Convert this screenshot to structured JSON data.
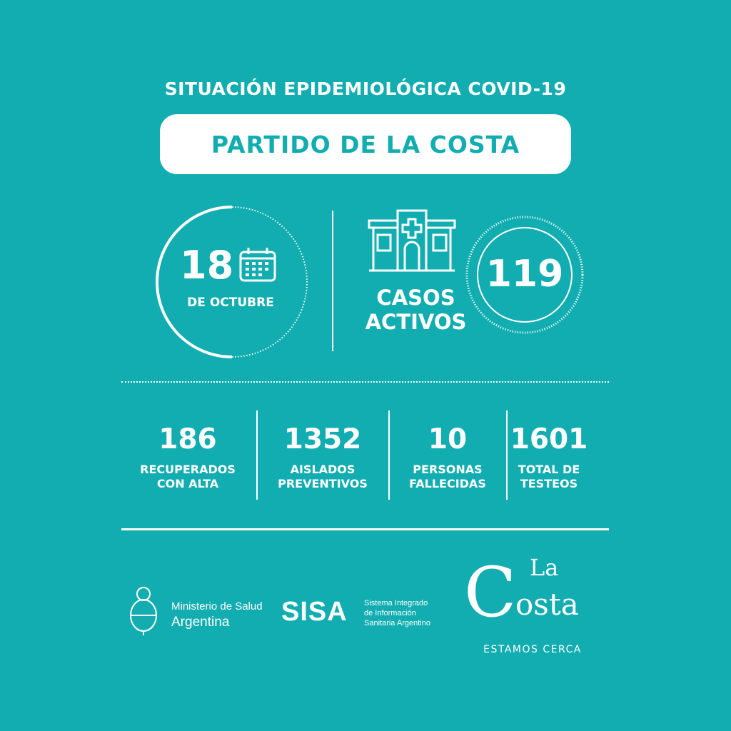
{
  "header": {
    "title": "SITUACIÓN EPIDEMIOLÓGICA COVID-19",
    "location": "PARTIDO DE LA COSTA"
  },
  "date": {
    "day": "18",
    "month": "DE OCTUBRE",
    "icon": "calendar-icon"
  },
  "active": {
    "icon": "hospital-icon",
    "label_line1": "CASOS",
    "label_line2": "ACTIVOS",
    "value": "119"
  },
  "stats": [
    {
      "value": "186",
      "line1": "RECUPERADOS",
      "line2": "CON ALTA"
    },
    {
      "value": "1352",
      "line1": "AISLADOS",
      "line2": "PREVENTIVOS"
    },
    {
      "value": "10",
      "line1": "PERSONAS",
      "line2": "FALLECIDAS"
    },
    {
      "value": "1601",
      "line1": "TOTAL DE",
      "line2": "TESTEOS"
    }
  ],
  "footer": {
    "ministerio_line1": "Ministerio de Salud",
    "ministerio_line2": "Argentina",
    "sisa_logo": "SISA",
    "sisa_line1": "Sistema Integrado",
    "sisa_line2": "de Información",
    "sisa_line3": "Sanitaria Argentino",
    "lacosta_logo": "La Costa",
    "lacosta_tagline": "ESTAMOS CERCA"
  },
  "colors": {
    "background": "#12adb0",
    "foreground": "#ffffff"
  }
}
